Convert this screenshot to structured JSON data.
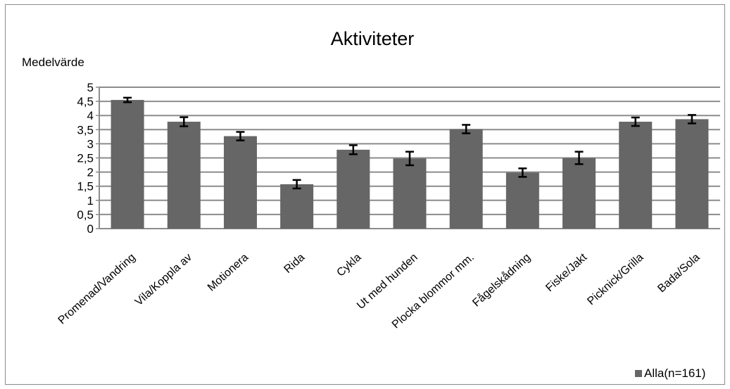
{
  "chart_data": {
    "type": "bar",
    "title": "Aktiviteter",
    "xlabel": "",
    "ylabel": "Medelvärde",
    "ylim": [
      0,
      5
    ],
    "yticks": [
      "0",
      "0,5",
      "1",
      "1,5",
      "2",
      "2,5",
      "3",
      "3,5",
      "4",
      "4,5",
      "5"
    ],
    "grid": true,
    "legend": "bottom-right",
    "categories": [
      "Promenad/Vandring",
      "Vila/Koppla av",
      "Motionera",
      "Rida",
      "Cykla",
      "Ut med hunden",
      "Plocka blommor mm.",
      "Fågelskådning",
      "Fiske/Jakt",
      "Picknick/Grilla",
      "Bada/Sola"
    ],
    "series": [
      {
        "name": "Alla(n=161)",
        "color": "#666666",
        "values": [
          4.55,
          3.78,
          3.27,
          1.57,
          2.79,
          2.48,
          3.52,
          1.98,
          2.5,
          3.78,
          3.87
        ],
        "error": [
          0.08,
          0.16,
          0.15,
          0.15,
          0.16,
          0.24,
          0.15,
          0.15,
          0.22,
          0.15,
          0.15
        ]
      }
    ]
  }
}
